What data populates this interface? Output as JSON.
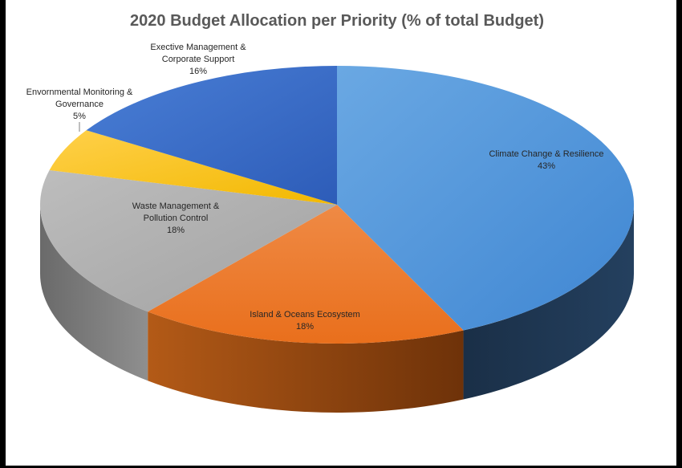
{
  "chart_data": {
    "type": "pie",
    "title": "2020 Budget Allocation per Priority (% of total Budget)",
    "style": "3d",
    "slices": [
      {
        "name": "Climate Change & Resilience",
        "label_lines": [
          "Climate Change & Resilience"
        ],
        "value": 43,
        "value_label": "43%",
        "color": "#4a8fd8",
        "side_color": "#1e3550"
      },
      {
        "name": "Island & Oceans Ecosystem",
        "label_lines": [
          "Island & Oceans Ecosystem"
        ],
        "value": 18,
        "value_label": "18%",
        "color": "#ed7a2a",
        "side_color": "#8a3e0e"
      },
      {
        "name": "Waste Management & Pollution Control",
        "label_lines": [
          "Waste Management &",
          "Pollution Control"
        ],
        "value": 18,
        "value_label": "18%",
        "color": "#a9a9a9",
        "side_color": "#6e6e6e"
      },
      {
        "name": "Envornmental Monitoring & Governance",
        "label_lines": [
          "Envornmental Monitoring &",
          "Governance"
        ],
        "value": 5,
        "value_label": "5%",
        "color": "#ffc000",
        "side_color": "#9e7600"
      },
      {
        "name": "Exective Management & Corporate Support",
        "label_lines": [
          "Exective Management &",
          "Corporate Support"
        ],
        "value": 16,
        "value_label": "16%",
        "color": "#3568c9",
        "side_color": "#1f3f7a"
      }
    ]
  }
}
